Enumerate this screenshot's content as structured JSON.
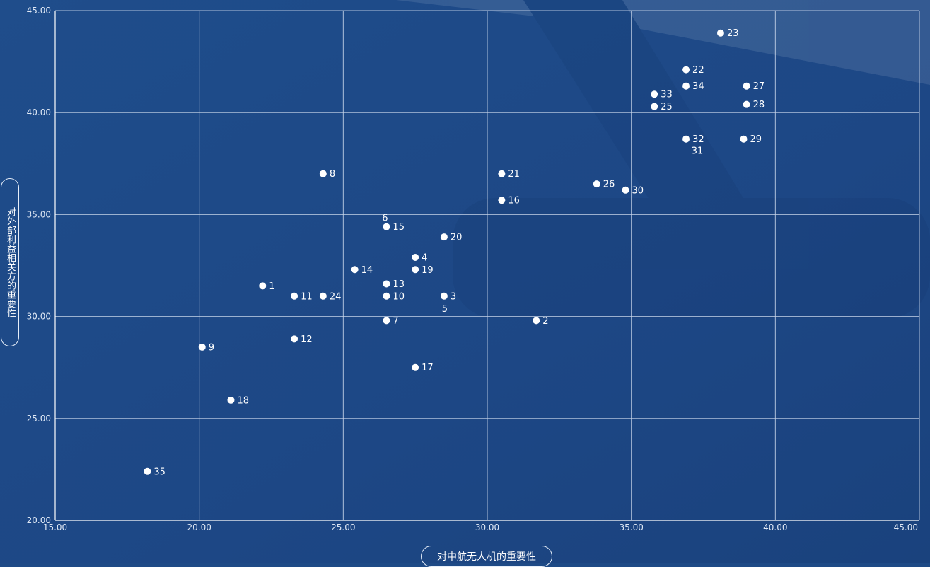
{
  "chart_data": {
    "type": "scatter",
    "title": "",
    "xlabel": "对中航无人机的重要性",
    "ylabel": "对外部利益相关方的重要性",
    "xlim": [
      15,
      45
    ],
    "ylim": [
      20,
      45
    ],
    "xticks": [
      "15.00",
      "20.00",
      "25.00",
      "30.00",
      "35.00",
      "40.00",
      "45.00"
    ],
    "yticks": [
      "20.00",
      "25.00",
      "30.00",
      "35.00",
      "40.00",
      "45.00"
    ],
    "grid": true,
    "points": [
      {
        "label": "1",
        "x": 22.2,
        "y": 31.5,
        "pos": "right"
      },
      {
        "label": "2",
        "x": 31.7,
        "y": 29.8,
        "pos": "right"
      },
      {
        "label": "3",
        "x": 28.5,
        "y": 31.0,
        "pos": "right"
      },
      {
        "label": "4",
        "x": 27.5,
        "y": 32.9,
        "pos": "right"
      },
      {
        "label": "5",
        "x": 28.5,
        "y": 31.0,
        "pos": "below"
      },
      {
        "label": "6",
        "x": 26.5,
        "y": 34.4,
        "pos": "above"
      },
      {
        "label": "7",
        "x": 26.5,
        "y": 29.8,
        "pos": "right"
      },
      {
        "label": "8",
        "x": 24.3,
        "y": 37.0,
        "pos": "right"
      },
      {
        "label": "9",
        "x": 20.1,
        "y": 28.5,
        "pos": "right"
      },
      {
        "label": "10",
        "x": 26.5,
        "y": 31.0,
        "pos": "right"
      },
      {
        "label": "11",
        "x": 23.3,
        "y": 31.0,
        "pos": "right"
      },
      {
        "label": "12",
        "x": 23.3,
        "y": 28.9,
        "pos": "right"
      },
      {
        "label": "13",
        "x": 26.5,
        "y": 31.6,
        "pos": "right"
      },
      {
        "label": "14",
        "x": 25.4,
        "y": 32.3,
        "pos": "right"
      },
      {
        "label": "15",
        "x": 26.5,
        "y": 34.4,
        "pos": "right"
      },
      {
        "label": "16",
        "x": 30.5,
        "y": 35.7,
        "pos": "right"
      },
      {
        "label": "17",
        "x": 27.5,
        "y": 27.5,
        "pos": "right"
      },
      {
        "label": "18",
        "x": 21.1,
        "y": 25.9,
        "pos": "right"
      },
      {
        "label": "19",
        "x": 27.5,
        "y": 32.3,
        "pos": "right"
      },
      {
        "label": "20",
        "x": 28.5,
        "y": 33.9,
        "pos": "right"
      },
      {
        "label": "21",
        "x": 30.5,
        "y": 37.0,
        "pos": "right"
      },
      {
        "label": "22",
        "x": 36.9,
        "y": 42.1,
        "pos": "right"
      },
      {
        "label": "23",
        "x": 38.1,
        "y": 43.9,
        "pos": "right"
      },
      {
        "label": "24",
        "x": 24.3,
        "y": 31.0,
        "pos": "right"
      },
      {
        "label": "25",
        "x": 35.8,
        "y": 40.3,
        "pos": "right"
      },
      {
        "label": "26",
        "x": 33.8,
        "y": 36.5,
        "pos": "right"
      },
      {
        "label": "27",
        "x": 39.0,
        "y": 41.3,
        "pos": "right"
      },
      {
        "label": "28",
        "x": 39.0,
        "y": 40.4,
        "pos": "right"
      },
      {
        "label": "29",
        "x": 38.9,
        "y": 38.7,
        "pos": "right"
      },
      {
        "label": "30",
        "x": 34.8,
        "y": 36.2,
        "pos": "right"
      },
      {
        "label": "31",
        "x": 36.9,
        "y": 38.7,
        "pos": "below"
      },
      {
        "label": "32",
        "x": 36.9,
        "y": 38.7,
        "pos": "right"
      },
      {
        "label": "33",
        "x": 35.8,
        "y": 40.9,
        "pos": "right"
      },
      {
        "label": "34",
        "x": 36.9,
        "y": 41.3,
        "pos": "right"
      },
      {
        "label": "35",
        "x": 18.2,
        "y": 22.4,
        "pos": "right"
      }
    ],
    "colors": {
      "background": "#1e4a86",
      "point": "#ffffff",
      "grid": "#c9d6ea",
      "axis": "#ffffff",
      "text": "#ffffff"
    }
  }
}
